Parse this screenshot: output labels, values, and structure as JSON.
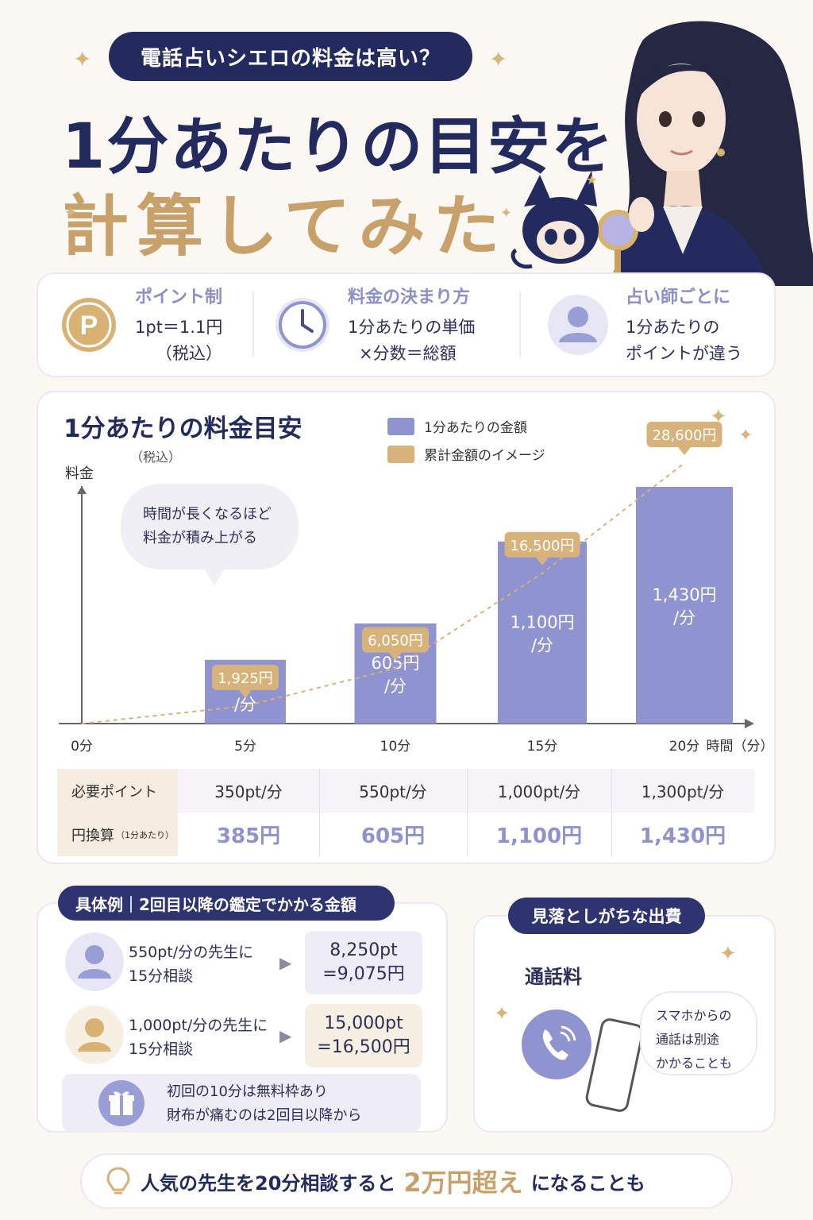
{
  "header": {
    "pill_text": "電話占いシエロの料金は高い？",
    "title_line1": "1分あたりの目安を",
    "title_line2": "計算してみた"
  },
  "features": [
    {
      "icon": "point-p-icon",
      "title": "ポイント制",
      "line1": "1pt＝1.1円",
      "line2": "（税込）"
    },
    {
      "icon": "clock-icon",
      "title": "料金の決まり方",
      "line1": "1分あたりの単価",
      "line2": "×分数＝総額"
    },
    {
      "icon": "user-icon",
      "title": "占い師ごとに",
      "line1": "1分あたりの",
      "line2": "ポイントが違う"
    }
  ],
  "chart_data": {
    "type": "bar",
    "title": "1分あたりの料金目安",
    "subtitle": "（税込）",
    "ylabel": "料金",
    "xlabel": "時間（分）",
    "x_ticks": [
      "0分",
      "5分",
      "10分",
      "15分",
      "20分"
    ],
    "categories": [
      "5分",
      "10分",
      "15分",
      "20分"
    ],
    "series": [
      {
        "name": "1分あたりの金額",
        "type": "bar",
        "values": [
          385,
          605,
          1100,
          1430
        ],
        "labels": [
          "385円\n/分",
          "605円\n/分",
          "1,100円\n/分",
          "1,430円\n/分"
        ]
      },
      {
        "name": "累計金額のイメージ",
        "type": "line",
        "values": [
          1925,
          6050,
          16500,
          28600
        ],
        "labels": [
          "1,925円",
          "6,050円",
          "16,500円",
          "28,600円"
        ]
      }
    ],
    "colors": {
      "bar": "#8f93cf",
      "line": "#d7b27a"
    },
    "legend_position": "top",
    "annotation": "時間が長くなるほど\n料金が積み上がる"
  },
  "table": {
    "row_headers": [
      "必要ポイント",
      "円換算"
    ],
    "row2_note": "（1分あたり）",
    "points": [
      "350pt/分",
      "550pt/分",
      "1,000pt/分",
      "1,300pt/分"
    ],
    "yen": [
      "385円",
      "605円",
      "1,100円",
      "1,430円"
    ]
  },
  "examples": {
    "pill": "具体例｜2回目以降の鑑定でかかる金額",
    "items": [
      {
        "line1": "550pt/分の先生に",
        "line2": "15分相談",
        "result1": "8,250pt",
        "result2": "=9,075円"
      },
      {
        "line1": "1,000pt/分の先生に",
        "line2": "15分相談",
        "result1": "15,000pt",
        "result2": "=16,500円"
      }
    ],
    "note_line1": "初回の10分は無料枠あり",
    "note_line2": "財布が痛むのは2回目以降から"
  },
  "hidden_costs": {
    "pill": "見落としがちな出費",
    "label": "通話料",
    "bubble_lines": [
      "スマホからの",
      "通話は別途",
      "かかることも"
    ]
  },
  "footer": {
    "pre": "人気の先生を20分相談すると",
    "highlight": "2万円超え",
    "post": "になることも"
  }
}
